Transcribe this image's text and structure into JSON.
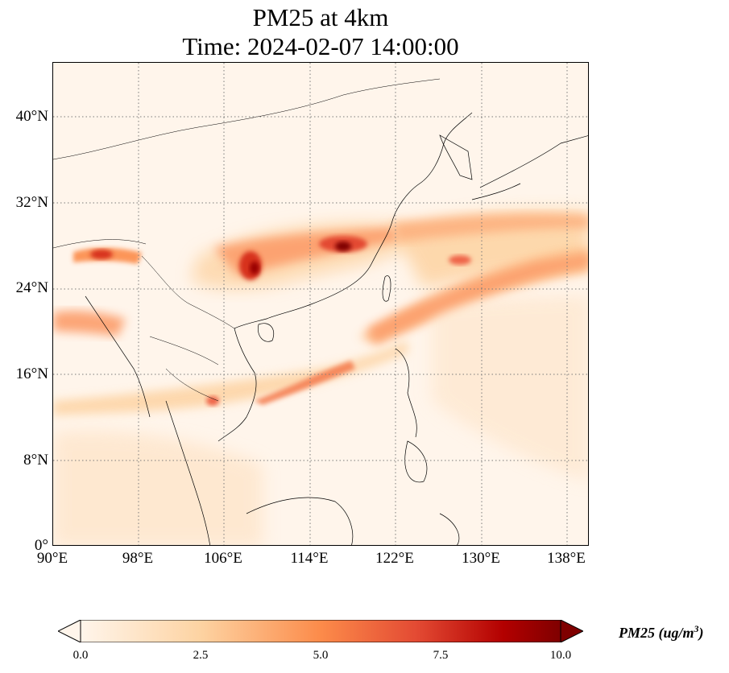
{
  "title_line1": "PM25 at 4km",
  "title_line2": "Time: 2024-02-07 14:00:00",
  "map": {
    "type": "filled-contour",
    "variable": "PM25",
    "projection": "PlateCarree",
    "lon_range": [
      90,
      139
    ],
    "lat_range": [
      0,
      44
    ],
    "gridlines": "dotted",
    "lat_ticks": [
      "0°",
      "8°N",
      "16°N",
      "24°N",
      "32°N",
      "40°N"
    ],
    "lon_ticks": [
      "90°E",
      "98°E",
      "106°E",
      "114°E",
      "122°E",
      "130°E",
      "138°E"
    ]
  },
  "colorbar": {
    "cmap": "OrRd",
    "orientation": "horizontal",
    "extend": "both",
    "ticks": [
      "0.0",
      "2.5",
      "5.0",
      "7.5",
      "10.0"
    ],
    "label_main": "PM25 (ug/m",
    "label_sup": "3",
    "label_end": ")",
    "colors": [
      "#fff5eb",
      "#fdd3a2",
      "#fc8b4a",
      "#e34a33",
      "#b30000",
      "#7f0000"
    ]
  }
}
